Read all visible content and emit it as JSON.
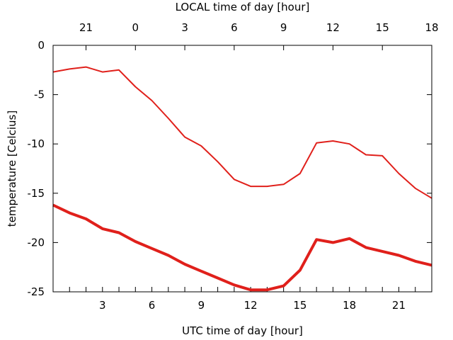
{
  "chart_data": {
    "type": "line",
    "title": "",
    "xlabel": "UTC time of day [hour]",
    "x2label": "LOCAL time of day [hour]",
    "ylabel": "temperature [Celcius]",
    "xlim": [
      0,
      23
    ],
    "ylim": [
      -25,
      0
    ],
    "xticks": [
      3,
      6,
      9,
      12,
      15,
      18,
      21
    ],
    "x2ticks": [
      {
        "x": 2,
        "label": "21"
      },
      {
        "x": 5,
        "label": "0"
      },
      {
        "x": 8,
        "label": "3"
      },
      {
        "x": 11,
        "label": "6"
      },
      {
        "x": 14,
        "label": "9"
      },
      {
        "x": 17,
        "label": "12"
      },
      {
        "x": 20,
        "label": "15"
      },
      {
        "x": 23,
        "label": "18"
      }
    ],
    "yticks": [
      0,
      -5,
      -10,
      -15,
      -20,
      -25
    ],
    "grid": false,
    "colors": {
      "series": "#e0201b",
      "axis": "#000000"
    },
    "x": [
      0,
      1,
      2,
      3,
      4,
      5,
      6,
      7,
      8,
      9,
      10,
      11,
      12,
      13,
      14,
      15,
      16,
      17,
      18,
      19,
      20,
      21,
      22,
      23
    ],
    "series": [
      {
        "values": [
          -2.7,
          -2.4,
          -2.2,
          -2.7,
          -2.5,
          -4.2,
          -5.6,
          -7.4,
          -9.3,
          -10.2,
          -11.8,
          -13.6,
          -14.3,
          -14.3,
          -14.1,
          -13.0,
          -9.9,
          -9.7,
          -10.0,
          -11.1,
          -11.2,
          -13.0,
          -14.5,
          -15.5
        ],
        "stroke_width": 2
      },
      {
        "values": [
          -16.2,
          -17.0,
          -17.6,
          -18.6,
          -19.0,
          -19.9,
          -20.6,
          -21.3,
          -22.2,
          -22.9,
          -23.6,
          -24.3,
          -24.8,
          -24.8,
          -24.4,
          -22.8,
          -19.7,
          -20.0,
          -19.6,
          -20.5,
          -20.9,
          -21.3,
          -21.9,
          -22.3
        ],
        "stroke_width": 4
      }
    ]
  }
}
